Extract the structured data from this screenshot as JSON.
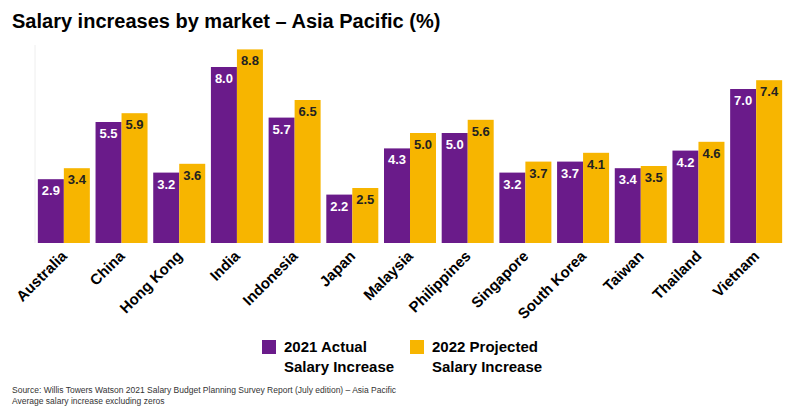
{
  "chart_data": {
    "type": "bar",
    "title": "Salary increases by market – Asia Pacific (%)",
    "categories": [
      "Australia",
      "China",
      "Hong Kong",
      "India",
      "Indonesia",
      "Japan",
      "Malaysia",
      "Philippines",
      "Singapore",
      "South Korea",
      "Taiwan",
      "Thailand",
      "Vietnam"
    ],
    "series": [
      {
        "name": "2021 Actual Salary Increase",
        "color": "#6a1b8a",
        "values": [
          2.9,
          5.5,
          3.2,
          8.0,
          5.7,
          2.2,
          4.3,
          5.0,
          3.2,
          3.7,
          3.4,
          4.2,
          7.0
        ],
        "value_labels": [
          "2.9",
          "5.5",
          "3.2",
          "8.0",
          "5.7",
          "2.2",
          "4.3",
          "5.0",
          "3.2",
          "3.7",
          "3.4",
          "4.2",
          "7.0"
        ]
      },
      {
        "name": "2022 Projected Salary Increase",
        "color": "#f7b500",
        "values": [
          3.4,
          5.9,
          3.6,
          8.8,
          6.5,
          2.5,
          5.0,
          5.6,
          3.7,
          4.1,
          3.5,
          4.6,
          7.4
        ],
        "value_labels": [
          "3.4",
          "5.9",
          "3.6",
          "8.8",
          "6.5",
          "2.5",
          "5.0",
          "5.6",
          "3.7",
          "4.1",
          "3.5",
          "4.6",
          "7.4"
        ]
      }
    ],
    "ylim": [
      0,
      9
    ],
    "data_labels": true,
    "tick_labels": "x",
    "grid": false,
    "legend": "bottom",
    "source": "Source: Willis Towers Watson 2021 Salary Budget Planning Survey Report (July edition) – Asia Pacific",
    "note": "Average salary increase excluding zeros"
  }
}
